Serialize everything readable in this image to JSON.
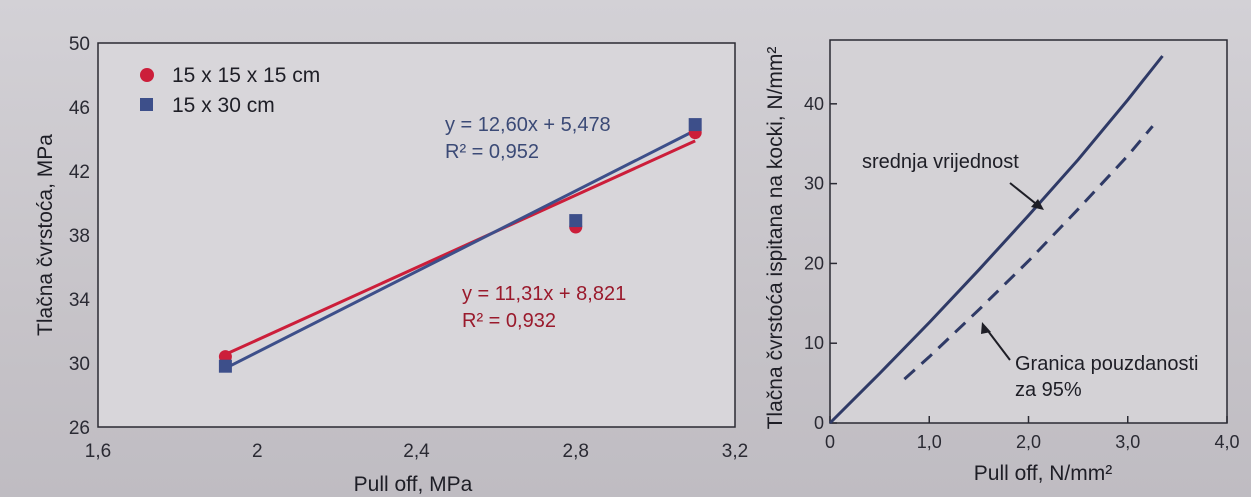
{
  "chart_data": [
    {
      "type": "scatter",
      "xlabel": "Pull off, MPa",
      "ylabel": "Tlačna čvrstoća, MPa",
      "xlim": [
        1.6,
        3.2
      ],
      "ylim": [
        26,
        50
      ],
      "x_ticks": [
        "1,6",
        "2",
        "2,4",
        "2,8",
        "3,2"
      ],
      "x_tick_values": [
        1.6,
        2.0,
        2.4,
        2.8,
        3.2
      ],
      "y_ticks": [
        "26",
        "30",
        "34",
        "38",
        "42",
        "46",
        "50"
      ],
      "y_tick_values": [
        26,
        30,
        34,
        38,
        42,
        46,
        50
      ],
      "legend_position": "top-left",
      "series": [
        {
          "name": "15 x 15 x 15 cm",
          "color": "#cc1e3a",
          "marker": "circle",
          "x": [
            1.92,
            2.8,
            3.1
          ],
          "y": [
            30.4,
            38.5,
            44.4
          ],
          "trendline": {
            "slope": 11.31,
            "intercept": 8.821,
            "x_range": [
              1.92,
              3.1
            ]
          },
          "equation": "y = 11,31x + 8,821",
          "r2": "R² = 0,932"
        },
        {
          "name": "15 x 30 cm",
          "color": "#3d4f8a",
          "marker": "square",
          "x": [
            1.92,
            2.8,
            3.1
          ],
          "y": [
            29.8,
            38.9,
            44.9
          ],
          "trendline": {
            "slope": 12.6,
            "intercept": 5.478,
            "x_range": [
              1.92,
              3.1
            ]
          },
          "equation": "y = 12,60x + 5,478",
          "r2": "R² = 0,952"
        }
      ]
    },
    {
      "type": "line",
      "xlabel": "Pull off, N/mm²",
      "ylabel": "Tlačna čvrstoća ispitana na kocki, N/mm²",
      "xlim": [
        0,
        4.0
      ],
      "ylim": [
        0,
        48
      ],
      "x_ticks": [
        "0",
        "1,0",
        "2,0",
        "3,0",
        "4,0"
      ],
      "x_tick_values": [
        0,
        1.0,
        2.0,
        3.0,
        4.0
      ],
      "y_ticks": [
        "0",
        "10",
        "20",
        "30",
        "40"
      ],
      "y_tick_values": [
        0,
        10,
        20,
        30,
        40
      ],
      "series": [
        {
          "name": "srednja vrijednost",
          "style": "solid",
          "color": "#2f3a66",
          "x": [
            0,
            0.5,
            1.0,
            1.5,
            2.0,
            2.5,
            3.0,
            3.35
          ],
          "y": [
            0,
            6.2,
            12.6,
            19.2,
            26.0,
            33.0,
            40.5,
            46.0
          ]
        },
        {
          "name": "Granica pouzdanosti za 95%",
          "style": "dashed",
          "color": "#2f3a66",
          "x": [
            0.75,
            1.0,
            1.5,
            2.0,
            2.5,
            3.0,
            3.25
          ],
          "y": [
            5.5,
            8.3,
            14.2,
            20.3,
            26.8,
            33.5,
            37.2
          ]
        }
      ],
      "annotations": {
        "mean_label": "srednja vrijednost",
        "conf_label_line1": "Granica pouzdanosti",
        "conf_label_line2": "za 95%"
      }
    }
  ]
}
